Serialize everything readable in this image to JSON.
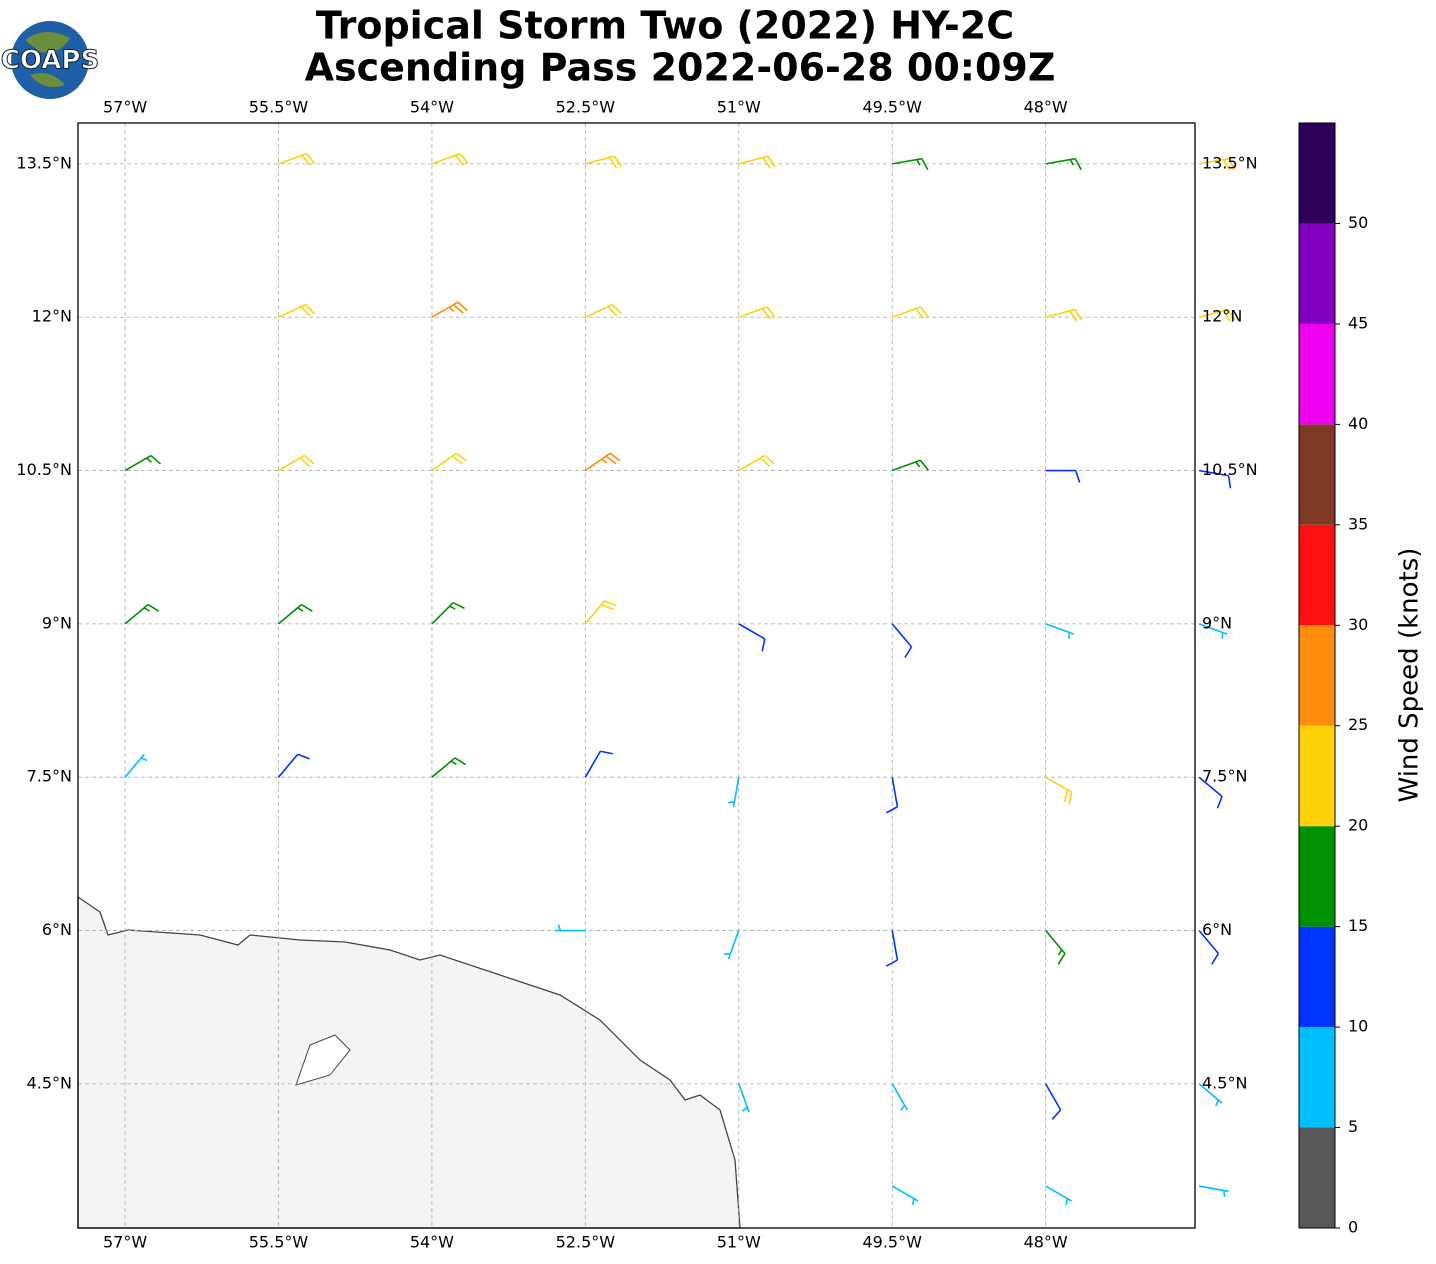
{
  "chart_data": {
    "type": "wind-barb-map",
    "title": "Tropical Storm Two (2022) HY-2C",
    "subtitle": "Ascending Pass 2022-06-28 00:09Z",
    "logo": "COAPS",
    "xlim": [
      -57.46,
      -46.54
    ],
    "ylim": [
      3.09,
      13.9
    ],
    "xticks": [
      {
        "value": -57,
        "label": "57°W"
      },
      {
        "value": -55.5,
        "label": "55.5°W"
      },
      {
        "value": -54,
        "label": "54°W"
      },
      {
        "value": -52.5,
        "label": "52.5°W"
      },
      {
        "value": -51,
        "label": "51°W"
      },
      {
        "value": -49.5,
        "label": "49.5°W"
      },
      {
        "value": -48,
        "label": "48°W"
      }
    ],
    "yticks": [
      {
        "value": 4.5,
        "label": "4.5°N"
      },
      {
        "value": 6,
        "label": "6°N"
      },
      {
        "value": 7.5,
        "label": "7.5°N"
      },
      {
        "value": 9,
        "label": "9°N"
      },
      {
        "value": 10.5,
        "label": "10.5°N"
      },
      {
        "value": 12,
        "label": "12°N"
      },
      {
        "value": 13.5,
        "label": "13.5°N"
      }
    ],
    "grid": true,
    "colorbar": {
      "label": "Wind Speed (knots)",
      "lim": [
        0,
        55
      ],
      "ticks": [
        0,
        5,
        10,
        15,
        20,
        25,
        30,
        35,
        40,
        45,
        50
      ],
      "bounds": [
        0,
        5,
        10,
        15,
        20,
        25,
        30,
        35,
        40,
        45,
        50,
        55
      ],
      "colors": [
        "#585858",
        "#00bfff",
        "#0033ff",
        "#009100",
        "#ffd20a",
        "#ff8c0a",
        "#ff1010",
        "#7f3a26",
        "#f000f0",
        "#8200c0",
        "#2e0058"
      ]
    },
    "wind": {
      "lon": [
        -55.5,
        -54,
        -52.5,
        -51,
        -49.5,
        -48,
        -46.5,
        -55.5,
        -54,
        -52.5,
        -51,
        -49.5,
        -48,
        -46.5,
        -57,
        -55.5,
        -54,
        -52.5,
        -51,
        -49.5,
        -48,
        -46.5,
        -57,
        -55.5,
        -54,
        -52.5,
        -51,
        -49.5,
        -48,
        -46.5,
        -57,
        -55.5,
        -54,
        -52.5,
        -51,
        -49.5,
        -48,
        -46.5,
        -52.5,
        -51,
        -49.5,
        -48,
        -46.5,
        -51,
        -49.5,
        -48,
        -46.5,
        -49.5,
        -48,
        -46.5
      ],
      "lat": [
        13.5,
        13.5,
        13.5,
        13.5,
        13.5,
        13.5,
        13.5,
        12,
        12,
        12,
        12,
        12,
        12,
        12,
        10.5,
        10.5,
        10.5,
        10.5,
        10.5,
        10.5,
        10.5,
        10.5,
        9,
        9,
        9,
        9,
        9,
        9,
        9,
        9,
        7.5,
        7.5,
        7.5,
        7.5,
        7.5,
        7.5,
        7.5,
        7.5,
        6,
        6,
        6,
        6,
        6,
        4.5,
        4.5,
        4.5,
        4.5,
        3.5,
        3.5,
        3.5
      ],
      "speed": [
        22,
        22,
        22,
        22,
        18,
        18,
        22,
        22,
        25,
        22,
        22,
        22,
        22,
        22,
        17,
        20,
        22,
        27,
        24,
        18,
        14,
        13,
        17,
        17,
        18,
        22,
        12,
        12,
        8,
        8,
        8,
        13,
        17,
        12,
        8,
        14,
        20,
        13,
        6,
        9,
        14,
        19,
        13,
        8,
        9,
        12,
        9,
        9,
        9,
        9
      ],
      "direction": [
        70,
        70,
        75,
        75,
        80,
        80,
        80,
        65,
        60,
        65,
        70,
        70,
        75,
        75,
        60,
        60,
        55,
        55,
        60,
        70,
        90,
        100,
        50,
        50,
        45,
        40,
        120,
        140,
        110,
        110,
        40,
        40,
        50,
        30,
        190,
        170,
        120,
        130,
        270,
        200,
        170,
        140,
        140,
        160,
        150,
        150,
        130,
        120,
        120,
        100
      ]
    }
  }
}
